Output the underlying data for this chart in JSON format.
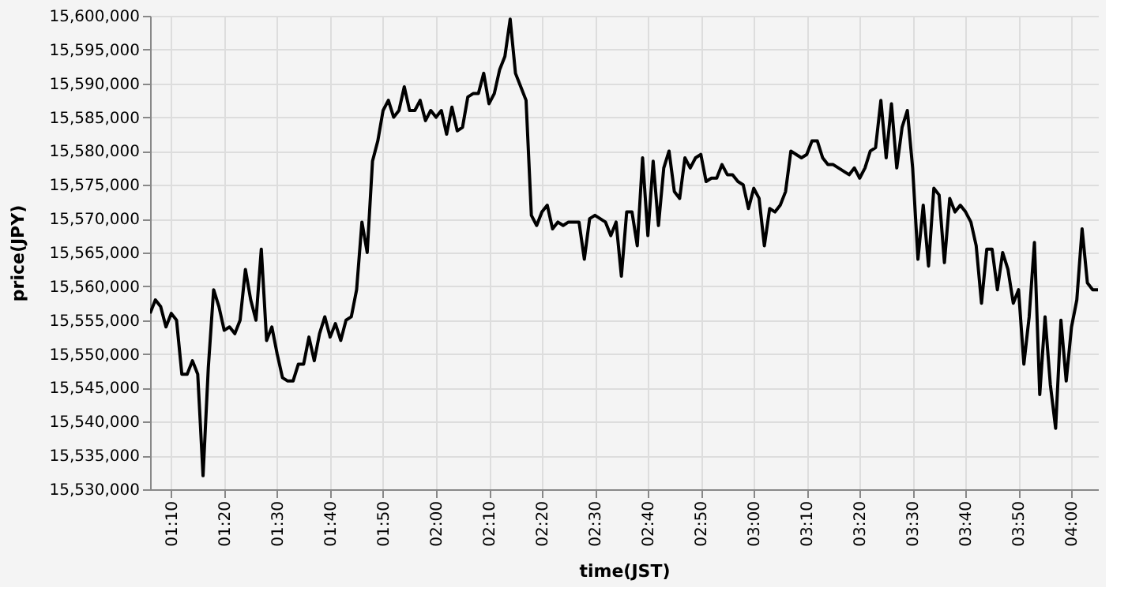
{
  "chart_data": {
    "type": "line",
    "xlabel": "time(JST)",
    "ylabel": "price(JPY)",
    "x": [
      1.1,
      1.1167,
      1.1333,
      1.15,
      1.1667,
      1.1833,
      1.2,
      1.2167,
      1.2333,
      1.25,
      1.2667,
      1.2833,
      1.3,
      1.3167,
      1.3333,
      1.35,
      1.3667,
      1.3833,
      1.4,
      1.4167,
      1.4333,
      1.45,
      1.4667,
      1.4833,
      1.5,
      1.5167,
      1.5333,
      1.55,
      1.5667,
      1.5833,
      1.6,
      1.6167,
      1.6333,
      1.65,
      1.6667,
      1.6833,
      1.7,
      1.7167,
      1.7333,
      1.75,
      1.7667,
      1.7833,
      1.8,
      1.8167,
      1.8333,
      1.85,
      1.8667,
      1.8833,
      1.9,
      1.9167,
      1.9333,
      1.95,
      1.9667,
      1.9833,
      2.0,
      2.0167,
      2.0333,
      2.05,
      2.0667,
      2.0833,
      2.1,
      2.1167,
      2.1333,
      2.15,
      2.1667,
      2.1833,
      2.2,
      2.2167,
      2.2333,
      2.25,
      2.2667,
      2.2833,
      2.3,
      2.3167,
      2.3333,
      2.35,
      2.3667,
      2.3833,
      2.4,
      2.4167,
      2.4333,
      2.45,
      2.4667,
      2.4833,
      2.5,
      2.5167,
      2.5333,
      2.55,
      2.5667,
      2.5833,
      2.6,
      2.6167,
      2.6333,
      2.65,
      2.6667,
      2.6833,
      2.7,
      2.7167,
      2.7333,
      2.75,
      2.7667,
      2.7833,
      2.8,
      2.8167,
      2.8333,
      2.85,
      2.8667,
      2.8833,
      2.9,
      2.9167,
      2.9333,
      2.95,
      2.9667,
      2.9833,
      3.0,
      3.0167,
      3.0333,
      3.05,
      3.0667,
      3.0833,
      3.1,
      3.1167,
      3.1333,
      3.15,
      3.1667,
      3.1833,
      3.2,
      3.2167,
      3.2333,
      3.25,
      3.2667,
      3.2833,
      3.3,
      3.3167,
      3.3333,
      3.35,
      3.3667,
      3.3833,
      3.4,
      3.4167,
      3.4333,
      3.45,
      3.4667,
      3.4833,
      3.5,
      3.5167,
      3.5333,
      3.55,
      3.5667,
      3.5833,
      3.6,
      3.6167,
      3.6333,
      3.65,
      3.6667,
      3.6833,
      3.7,
      3.7167,
      3.7333,
      3.75,
      3.7667,
      3.7833,
      3.8,
      3.8167,
      3.8333,
      3.85,
      3.8667,
      3.8833,
      3.9,
      3.9167,
      3.9333,
      3.95,
      3.9667,
      3.9833,
      4.0,
      4.0167,
      4.0333,
      4.05,
      4.0667,
      4.0833
    ],
    "values": [
      15556000,
      15558000,
      15557000,
      15554000,
      15556000,
      15555000,
      15547000,
      15547000,
      15549000,
      15547000,
      15532000,
      15548000,
      15559500,
      15557000,
      15553500,
      15554000,
      15553000,
      15555000,
      15562500,
      15558000,
      15555000,
      15565500,
      15552000,
      15554000,
      15550000,
      15546500,
      15546000,
      15546000,
      15548500,
      15548500,
      15552500,
      15549000,
      15553000,
      15555500,
      15552500,
      15554500,
      15552000,
      15555000,
      15555500,
      15559500,
      15569500,
      15565000,
      15578500,
      15581500,
      15586000,
      15587500,
      15585000,
      15586000,
      15589500,
      15586000,
      15586000,
      15587500,
      15584500,
      15586000,
      15585000,
      15586000,
      15582500,
      15586500,
      15583000,
      15583500,
      15588000,
      15588500,
      15588500,
      15591500,
      15587000,
      15588500,
      15592000,
      15594000,
      15599500,
      15591500,
      15589500,
      15587500,
      15570500,
      15569000,
      15571000,
      15572000,
      15568500,
      15569500,
      15569000,
      15569500,
      15569500,
      15569500,
      15564000,
      15570000,
      15570500,
      15570000,
      15569500,
      15567500,
      15569500,
      15561500,
      15571000,
      15571000,
      15566000,
      15579000,
      15567500,
      15578500,
      15569000,
      15577500,
      15580000,
      15574000,
      15573000,
      15579000,
      15577500,
      15579000,
      15579500,
      15575500,
      15576000,
      15576000,
      15578000,
      15576500,
      15576500,
      15575500,
      15575000,
      15571500,
      15574500,
      15573000,
      15566000,
      15571500,
      15571000,
      15572000,
      15574000,
      15580000,
      15579500,
      15579000,
      15579500,
      15581500,
      15581500,
      15579000,
      15578000,
      15578000,
      15577500,
      15577000,
      15576500,
      15577500,
      15576000,
      15577500,
      15580000,
      15580500,
      15587500,
      15579000,
      15587000,
      15577500,
      15583500,
      15586000,
      15577500,
      15564000,
      15572000,
      15563000,
      15574500,
      15573500,
      15563500,
      15573000,
      15571000,
      15572000,
      15571000,
      15569500,
      15566000,
      15557500,
      15565500,
      15565500,
      15559500,
      15565000,
      15562500,
      15557500,
      15559500,
      15548500,
      15555500,
      15566500,
      15544000,
      15555500,
      15545500,
      15539000,
      15555000,
      15546000,
      15554000,
      15558000,
      15568500,
      15560500,
      15559500,
      15559500
    ],
    "color": "#000000",
    "line_style": "solid",
    "xlim": [
      1.1,
      4.0833
    ],
    "xticks": [
      {
        "value": 1.1667,
        "label": "01:10"
      },
      {
        "value": 1.3333,
        "label": "01:20"
      },
      {
        "value": 1.5,
        "label": "01:30"
      },
      {
        "value": 1.6667,
        "label": "01:40"
      },
      {
        "value": 1.8333,
        "label": "01:50"
      },
      {
        "value": 2.0,
        "label": "02:00"
      },
      {
        "value": 2.1667,
        "label": "02:10"
      },
      {
        "value": 2.3333,
        "label": "02:20"
      },
      {
        "value": 2.5,
        "label": "02:30"
      },
      {
        "value": 2.6667,
        "label": "02:40"
      },
      {
        "value": 2.8333,
        "label": "02:50"
      },
      {
        "value": 3.0,
        "label": "03:00"
      },
      {
        "value": 3.1667,
        "label": "03:10"
      },
      {
        "value": 3.3333,
        "label": "03:20"
      },
      {
        "value": 3.5,
        "label": "03:30"
      },
      {
        "value": 3.6667,
        "label": "03:40"
      },
      {
        "value": 3.8333,
        "label": "03:50"
      },
      {
        "value": 4.0,
        "label": "04:00"
      }
    ],
    "ylim": [
      15530000,
      15600000
    ],
    "yticks": [
      {
        "value": 15530000,
        "label": "15,530,000"
      },
      {
        "value": 15535000,
        "label": "15,535,000"
      },
      {
        "value": 15540000,
        "label": "15,540,000"
      },
      {
        "value": 15545000,
        "label": "15,545,000"
      },
      {
        "value": 15550000,
        "label": "15,550,000"
      },
      {
        "value": 15555000,
        "label": "15,555,000"
      },
      {
        "value": 15560000,
        "label": "15,560,000"
      },
      {
        "value": 15565000,
        "label": "15,565,000"
      },
      {
        "value": 15570000,
        "label": "15,570,000"
      },
      {
        "value": 15575000,
        "label": "15,575,000"
      },
      {
        "value": 15580000,
        "label": "15,580,000"
      },
      {
        "value": 15585000,
        "label": "15,585,000"
      },
      {
        "value": 15590000,
        "label": "15,590,000"
      },
      {
        "value": 15595000,
        "label": "15,595,000"
      },
      {
        "value": 15600000,
        "label": "15,600,000"
      }
    ],
    "grid": true
  }
}
